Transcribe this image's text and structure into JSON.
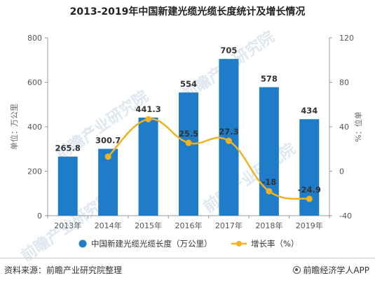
{
  "chart_data": {
    "type": "bar",
    "title": "2013-2019年中国新建光缆光缆长度统计及增长情况",
    "categories": [
      "2013年",
      "2014年",
      "2015年",
      "2016年",
      "2017年",
      "2018年",
      "2019年"
    ],
    "series": [
      {
        "name": "中国新建光缆光缆长度（万公里）",
        "type": "bar",
        "axis": "left",
        "color": "#1e7cc8",
        "values": [
          265.8,
          300.7,
          441.3,
          554,
          705,
          578,
          434
        ],
        "labels": [
          "265.8",
          "300.7",
          "441.3",
          "554",
          "705",
          "578",
          "434"
        ]
      },
      {
        "name": "增长率（%）",
        "type": "line",
        "axis": "right",
        "color": "#f0b323",
        "values": [
          null,
          13.1,
          46.8,
          25.5,
          27.3,
          -18,
          -24.9
        ],
        "labels": [
          "",
          "",
          "",
          "25.5",
          "27.3",
          "-18",
          "-24.9"
        ]
      }
    ],
    "ylabel_left": "单位：万公里",
    "ylabel_right": "%：位单",
    "ylim_left": [
      0,
      800
    ],
    "yticks_left": [
      "0",
      "200",
      "400",
      "600",
      "800"
    ],
    "ylim_right": [
      -40,
      120
    ],
    "yticks_right": [
      "-40",
      "0",
      "40",
      "80",
      "120"
    ],
    "grid": false,
    "legend_position": "bottom-center"
  },
  "watermark": "前瞻产业研究院",
  "footer": {
    "source": "资料来源：前瞻产业研究院整理",
    "brand": "前瞻经济学人APP",
    "brand_icon": "qianzhan-logo-icon"
  }
}
